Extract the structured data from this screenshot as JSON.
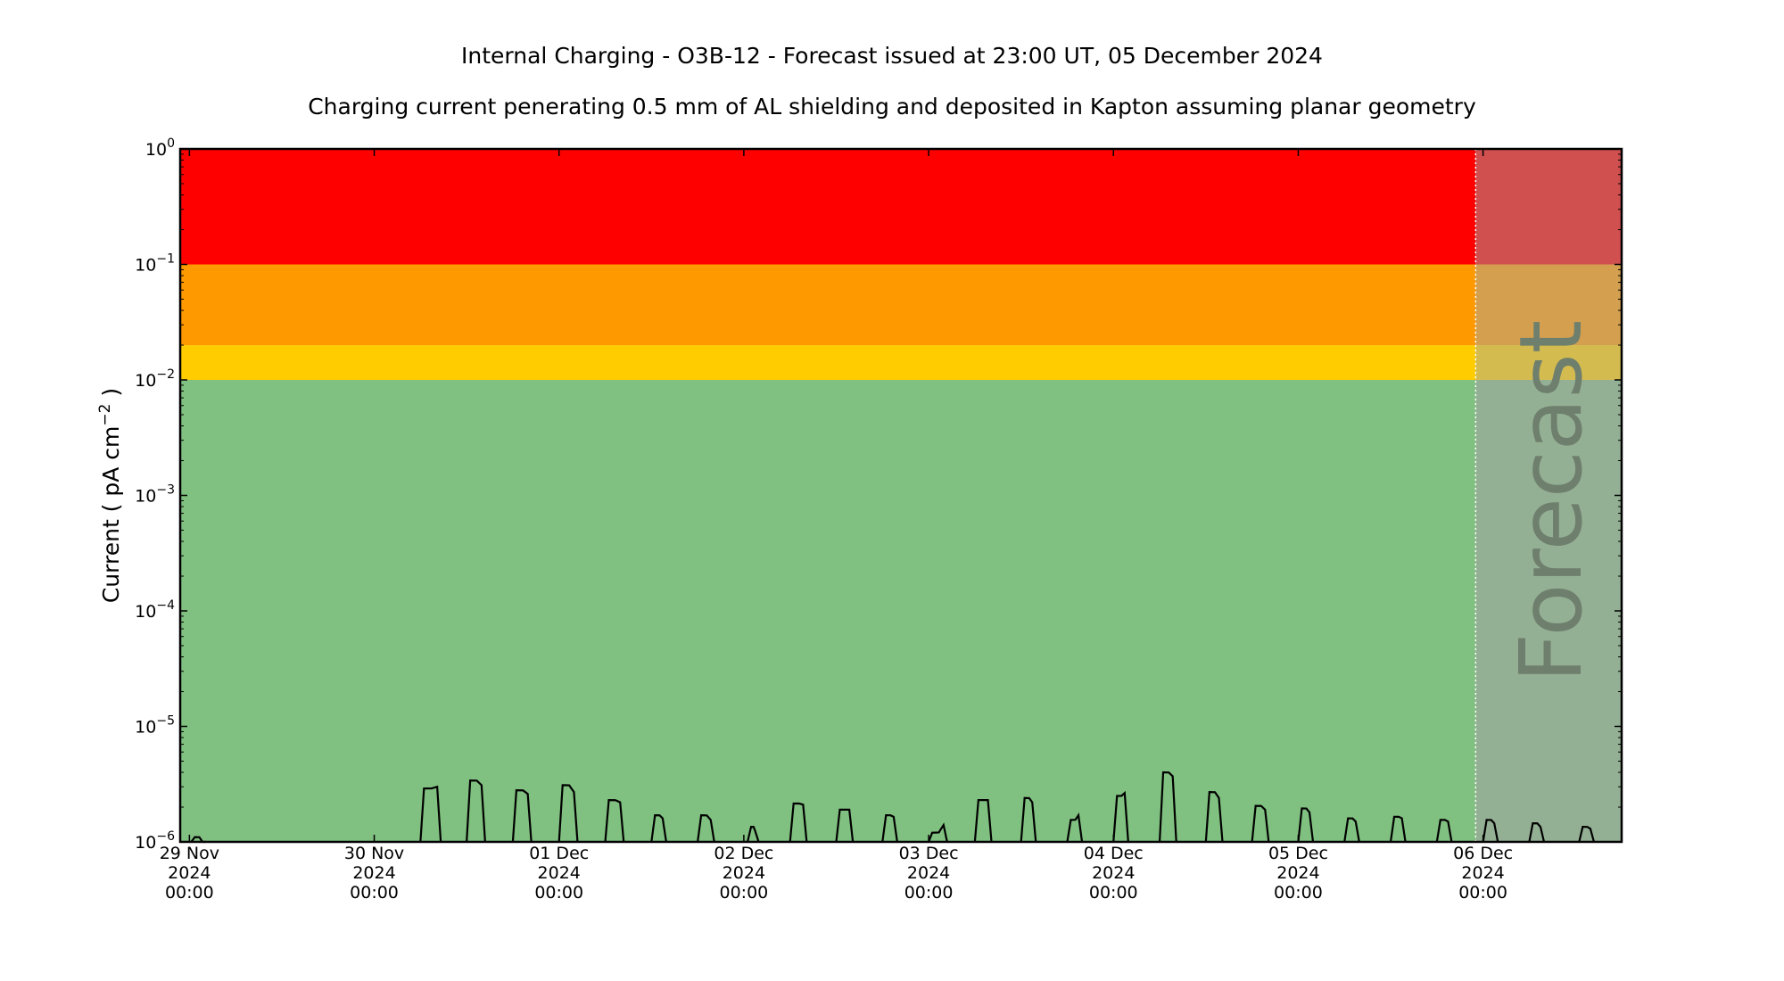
{
  "chart_data": {
    "type": "line",
    "title": "Internal Charging - O3B-12 - Forecast issued at 23:00 UT, 05 December 2024",
    "subtitle": "Charging current penerating 0.5 mm of AL shielding and deposited in Kapton assuming planar geometry",
    "ylabel": "Current ( pA cm",
    "ylabel_sup": "−2",
    "ylabel_close": " )",
    "yscale": "log",
    "ylim": [
      1e-06,
      1
    ],
    "xlim_days": [
      -0.05,
      7.75
    ],
    "y_ticks": [
      {
        "exp": 0,
        "base": "10",
        "sup": "0"
      },
      {
        "exp": -1,
        "base": "10",
        "sup": "−1"
      },
      {
        "exp": -2,
        "base": "10",
        "sup": "−2"
      },
      {
        "exp": -3,
        "base": "10",
        "sup": "−3"
      },
      {
        "exp": -4,
        "base": "10",
        "sup": "−4"
      },
      {
        "exp": -5,
        "base": "10",
        "sup": "−5"
      },
      {
        "exp": -6,
        "base": "10",
        "sup": "−6"
      }
    ],
    "x_ticks": [
      {
        "day": 0,
        "lines": [
          "29 Nov",
          "2024",
          "00:00"
        ]
      },
      {
        "day": 1,
        "lines": [
          "30 Nov",
          "2024",
          "00:00"
        ]
      },
      {
        "day": 2,
        "lines": [
          "01 Dec",
          "2024",
          "00:00"
        ]
      },
      {
        "day": 3,
        "lines": [
          "02 Dec",
          "2024",
          "00:00"
        ]
      },
      {
        "day": 4,
        "lines": [
          "03 Dec",
          "2024",
          "00:00"
        ]
      },
      {
        "day": 5,
        "lines": [
          "04 Dec",
          "2024",
          "00:00"
        ]
      },
      {
        "day": 6,
        "lines": [
          "05 Dec",
          "2024",
          "00:00"
        ]
      },
      {
        "day": 7,
        "lines": [
          "06 Dec",
          "2024",
          "00:00"
        ]
      }
    ],
    "bands": [
      {
        "name": "red",
        "from": 0.1,
        "to": 1,
        "color": "#ff0000",
        "forecast_color": "#d05050"
      },
      {
        "name": "orange",
        "from": 0.02,
        "to": 0.1,
        "color": "#ff9900",
        "forecast_color": "#d4a050"
      },
      {
        "name": "yellow",
        "from": 0.01,
        "to": 0.02,
        "color": "#ffcc00",
        "forecast_color": "#d4bb50"
      },
      {
        "name": "green",
        "from": 1e-06,
        "to": 0.01,
        "color": "#80c080",
        "forecast_color": "#94b094"
      }
    ],
    "forecast": {
      "start_day": 6.96,
      "label": "Forecast"
    },
    "series": [
      {
        "color": "#000000",
        "peaks": [
          {
            "start": 0.01,
            "end": 0.09,
            "y1": 1.1e-06,
            "y2": 1e-06
          },
          {
            "start": 1.25,
            "end": 1.36,
            "y1": 2.9e-06,
            "y2": 3e-06
          },
          {
            "start": 1.5,
            "end": 1.6,
            "y1": 3.4e-06,
            "y2": 3.1e-06
          },
          {
            "start": 1.75,
            "end": 1.85,
            "y1": 2.8e-06,
            "y2": 2.6e-06
          },
          {
            "start": 2.0,
            "end": 2.1,
            "y1": 3.1e-06,
            "y2": 2.7e-06
          },
          {
            "start": 2.25,
            "end": 2.35,
            "y1": 2.3e-06,
            "y2": 2.2e-06
          },
          {
            "start": 2.5,
            "end": 2.58,
            "y1": 1.7e-06,
            "y2": 1.6e-06
          },
          {
            "start": 2.75,
            "end": 2.84,
            "y1": 1.7e-06,
            "y2": 1.55e-06
          },
          {
            "start": 3.02,
            "end": 3.08,
            "y1": 1.35e-06,
            "y2": 1.25e-06
          },
          {
            "start": 3.25,
            "end": 3.34,
            "y1": 2.15e-06,
            "y2": 2.1e-06
          },
          {
            "start": 3.5,
            "end": 3.59,
            "y1": 1.9e-06,
            "y2": 1.9e-06
          },
          {
            "start": 3.75,
            "end": 3.83,
            "y1": 1.7e-06,
            "y2": 1.65e-06
          },
          {
            "start": 4.0,
            "end": 4.1,
            "y1": 1.2e-06,
            "y2": 1.4e-06
          },
          {
            "start": 4.25,
            "end": 4.34,
            "y1": 2.3e-06,
            "y2": 2.3e-06
          },
          {
            "start": 4.5,
            "end": 4.58,
            "y1": 2.4e-06,
            "y2": 2.2e-06
          },
          {
            "start": 4.75,
            "end": 4.83,
            "y1": 1.55e-06,
            "y2": 1.7e-06
          },
          {
            "start": 5.0,
            "end": 5.08,
            "y1": 2.5e-06,
            "y2": 2.65e-06
          },
          {
            "start": 5.25,
            "end": 5.34,
            "y1": 4e-06,
            "y2": 3.7e-06
          },
          {
            "start": 5.5,
            "end": 5.59,
            "y1": 2.7e-06,
            "y2": 2.4e-06
          },
          {
            "start": 5.75,
            "end": 5.84,
            "y1": 2.05e-06,
            "y2": 1.9e-06
          },
          {
            "start": 6.0,
            "end": 6.08,
            "y1": 1.95e-06,
            "y2": 1.8e-06
          },
          {
            "start": 6.25,
            "end": 6.33,
            "y1": 1.6e-06,
            "y2": 1.5e-06
          },
          {
            "start": 6.5,
            "end": 6.58,
            "y1": 1.65e-06,
            "y2": 1.6e-06
          },
          {
            "start": 6.75,
            "end": 6.83,
            "y1": 1.55e-06,
            "y2": 1.5e-06
          },
          {
            "start": 7.0,
            "end": 7.08,
            "y1": 1.55e-06,
            "y2": 1.45e-06
          },
          {
            "start": 7.25,
            "end": 7.33,
            "y1": 1.45e-06,
            "y2": 1.35e-06
          },
          {
            "start": 7.52,
            "end": 7.6,
            "y1": 1.35e-06,
            "y2": 1.3e-06
          }
        ]
      }
    ]
  }
}
